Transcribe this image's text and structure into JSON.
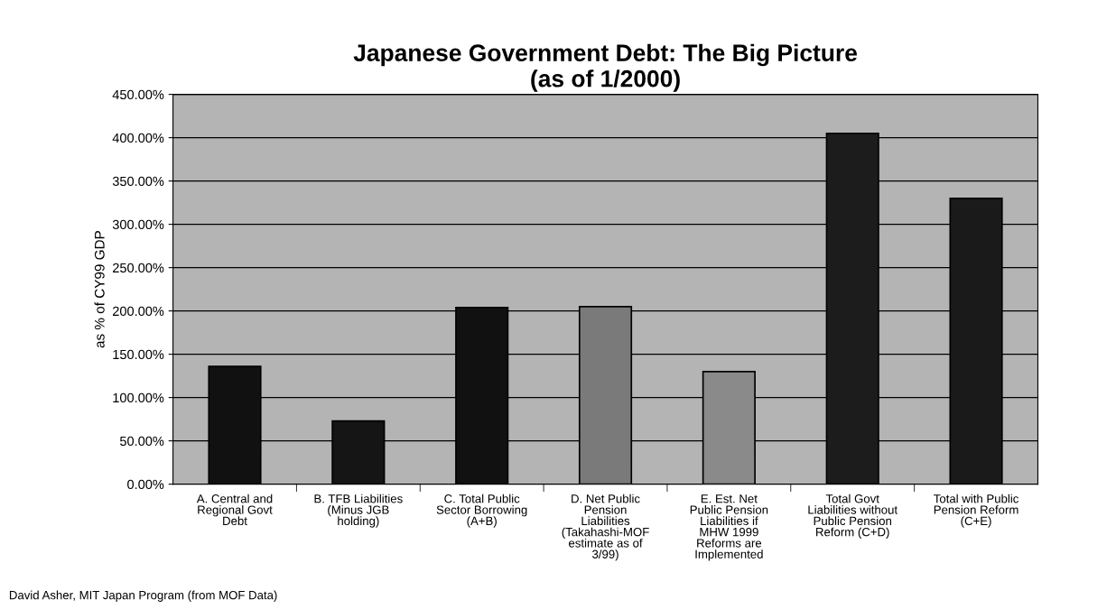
{
  "chart_data": {
    "type": "bar",
    "title": "Japanese Government Debt: The Big Picture\n(as of 1/2000)",
    "ylabel": "as % of CY99 GDP",
    "categories": [
      "A. Central and\nRegional Govt\nDebt",
      "B. TFB Liabilities\n(Minus JGB\nholding)",
      "C. Total Public\nSector Borrowing\n(A+B)",
      "D. Net Public\nPension\nLiabilities\n(Takahashi-MOF\nestimate as of\n3/99)",
      "E. Est. Net\nPublic Pension\nLiabilities if\nMHW 1999\nReforms are\nImplemented",
      "Total Govt\nLiabilities without\nPublic Pension\nReform (C+D)",
      "Total with Public\nPension Reform\n(C+E)"
    ],
    "values": [
      1.36,
      0.73,
      2.04,
      2.05,
      1.3,
      4.05,
      3.3
    ],
    "colors": [
      "#111111",
      "#151515",
      "#111111",
      "#7a7a7a",
      "#8a8a8a",
      "#1c1c1c",
      "#1a1a1a"
    ],
    "ylim": [
      0,
      4.5
    ],
    "yticks": [
      {
        "value": 0,
        "label": "0.00%"
      },
      {
        "value": 0.5,
        "label": "50.00%"
      },
      {
        "value": 1,
        "label": "100.00%"
      },
      {
        "value": 1.5,
        "label": "150.00%"
      },
      {
        "value": 2,
        "label": "200.00%"
      },
      {
        "value": 2.5,
        "label": "250.00%"
      },
      {
        "value": 3,
        "label": "300.00%"
      },
      {
        "value": 3.5,
        "label": "350.00%"
      },
      {
        "value": 4,
        "label": "400.00%"
      },
      {
        "value": 4.5,
        "label": "450.00%"
      }
    ],
    "grid": "y",
    "annotations": [
      "David Asher, MIT Japan Program (from MOF Data)"
    ]
  }
}
